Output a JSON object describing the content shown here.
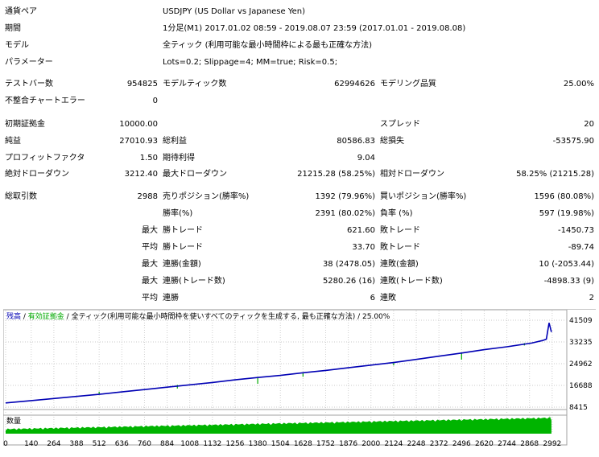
{
  "summary": {
    "symbol": {
      "label": "通貨ペア",
      "value": "USDJPY (US Dollar vs Japanese Yen)"
    },
    "period": {
      "label": "期間",
      "value": "1分足(M1) 2017.01.02 08:59 - 2019.08.07 23:59 (2017.01.01 - 2019.08.08)"
    },
    "model": {
      "label": "モデル",
      "value": "全ティック (利用可能な最小時間枠による最も正確な方法)"
    },
    "parameters": {
      "label": "パラメーター",
      "value": "Lots=0.2; Slippage=4; MM=true; Risk=0.5;"
    }
  },
  "stats": {
    "bars_tested": {
      "label": "テストバー数",
      "value": "954825"
    },
    "ticks_modeled": {
      "label": "モデルティック数",
      "value": "62994626"
    },
    "modeling_quality": {
      "label": "モデリング品質",
      "value": "25.00%"
    },
    "mismatched_errors": {
      "label": "不整合チャートエラー",
      "value": "0"
    },
    "initial_deposit": {
      "label": "初期証拠金",
      "value": "10000.00"
    },
    "spread": {
      "label": "スプレッド",
      "value": "20"
    },
    "net_profit": {
      "label": "純益",
      "value": "27010.93"
    },
    "gross_profit": {
      "label": "総利益",
      "value": "80586.83"
    },
    "gross_loss": {
      "label": "総損失",
      "value": "-53575.90"
    },
    "profit_factor": {
      "label": "プロフィットファクタ",
      "value": "1.50"
    },
    "expected_payoff": {
      "label": "期待利得",
      "value": "9.04"
    },
    "absolute_drawdown": {
      "label": "絶対ドローダウン",
      "value": "3212.40"
    },
    "maximal_drawdown": {
      "label": "最大ドローダウン",
      "value": "21215.28 (58.25%)"
    },
    "relative_drawdown": {
      "label": "相対ドローダウン",
      "value": "58.25% (21215.28)"
    },
    "total_trades": {
      "label": "総取引数",
      "value": "2988"
    },
    "short_positions": {
      "label": "売りポジション(勝率%)",
      "value": "1392 (79.96%)"
    },
    "long_positions": {
      "label": "買いポジション(勝率%)",
      "value": "1596 (80.08%)"
    },
    "profit_trades": {
      "label": "勝率(%)",
      "value": "2391 (80.02%)"
    },
    "loss_trades": {
      "label": "負率 (%)",
      "value": "597 (19.98%)"
    },
    "largest_profit": {
      "prefix": "最大",
      "label": "勝トレード",
      "value": "621.60"
    },
    "largest_loss": {
      "label": "敗トレード",
      "value": "-1450.73"
    },
    "average_profit": {
      "prefix": "平均",
      "label": "勝トレード",
      "value": "33.70"
    },
    "average_loss": {
      "label": "敗トレード",
      "value": "-89.74"
    },
    "max_consec_wins": {
      "prefix": "最大",
      "label": "連勝(金額)",
      "value": "38 (2478.05)"
    },
    "max_consec_losses": {
      "label": "連敗(金額)",
      "value": "10 (-2053.44)"
    },
    "max_consec_profit": {
      "prefix": "最大",
      "label": "連勝(トレード数)",
      "value": "5280.26 (16)"
    },
    "max_consec_loss": {
      "label": "連敗(トレード数)",
      "value": "-4898.33 (9)"
    },
    "avg_consec_wins": {
      "prefix": "平均",
      "label": "連勝",
      "value": "6"
    },
    "avg_consec_losses": {
      "label": "連敗",
      "value": "2"
    }
  },
  "chart_data": {
    "type": "line",
    "legend": {
      "balance": "残高",
      "sep1": " / ",
      "equity": "有効証拠金",
      "sep2": " / ",
      "model": "全ティック(利用可能な最小時間枠を使いすべてのティックを生成する, 最も正確な方法)",
      "sep3": " / ",
      "quality": "25.00%"
    },
    "colors": {
      "balance": "#0000b4",
      "equity": "#00aa00",
      "volume": "#00b400"
    },
    "y_ticks": [
      "41509",
      "33235",
      "24962",
      "16688",
      "8415"
    ],
    "ylim": [
      8415,
      41509
    ],
    "x_ticks": [
      "0",
      "140",
      "264",
      "388",
      "512",
      "636",
      "760",
      "884",
      "1008",
      "1132",
      "1256",
      "1380",
      "1504",
      "1628",
      "1752",
      "1876",
      "2000",
      "2124",
      "2248",
      "2372",
      "2496",
      "2620",
      "2744",
      "2868",
      "2992"
    ],
    "xlim": [
      0,
      3028
    ],
    "volume_label": "数量",
    "balance_series": {
      "x": [
        0,
        140,
        264,
        388,
        512,
        636,
        760,
        884,
        1008,
        1132,
        1256,
        1380,
        1504,
        1628,
        1752,
        1876,
        2000,
        2124,
        2248,
        2372,
        2496,
        2620,
        2744,
        2880,
        2940,
        2960,
        2975,
        2988
      ],
      "y": [
        10000,
        10900,
        11700,
        12500,
        13300,
        14200,
        15100,
        16000,
        16900,
        17800,
        18800,
        19700,
        20500,
        21500,
        22400,
        23400,
        24400,
        25400,
        26600,
        27800,
        29000,
        30300,
        31400,
        32800,
        33800,
        34300,
        40500,
        37010
      ]
    },
    "equity_dips": [
      {
        "x": 512,
        "y": 14300
      },
      {
        "x": 600,
        "y": 13800
      },
      {
        "x": 940,
        "y": 15500
      },
      {
        "x": 1380,
        "y": 17300
      },
      {
        "x": 1628,
        "y": 20000
      },
      {
        "x": 2124,
        "y": 24300
      },
      {
        "x": 2496,
        "y": 26500
      },
      {
        "x": 2840,
        "y": 31900
      }
    ]
  }
}
